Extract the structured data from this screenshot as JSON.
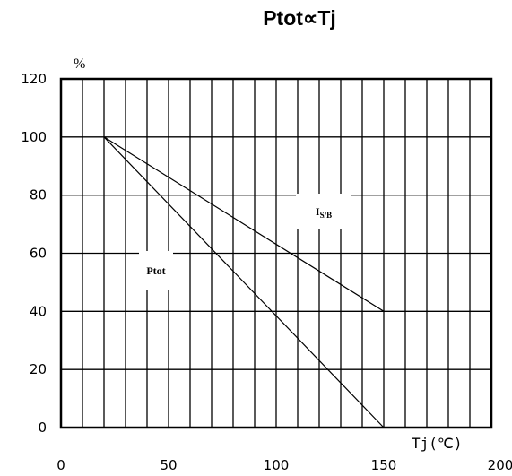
{
  "chart_data": {
    "type": "line",
    "title": "Ptot∝Tj",
    "ylabel": "%",
    "xlabel": "Tj(℃)",
    "xlim": [
      0,
      200
    ],
    "ylim": [
      0,
      120
    ],
    "x_ticks": [
      0,
      50,
      100,
      150,
      200
    ],
    "y_ticks": [
      0,
      20,
      40,
      60,
      80,
      100,
      120
    ],
    "grid": true,
    "series": [
      {
        "name": "Ptot",
        "label_main": "Ptot",
        "label_sub": "",
        "points": [
          [
            20,
            100
          ],
          [
            150,
            0
          ]
        ]
      },
      {
        "name": "IS/B",
        "label_main": "I",
        "label_sub": "S/B",
        "points": [
          [
            20,
            100
          ],
          [
            150,
            40
          ]
        ]
      }
    ]
  },
  "colors": {
    "line": "#000000",
    "grid": "#000000",
    "background": "#ffffff"
  }
}
